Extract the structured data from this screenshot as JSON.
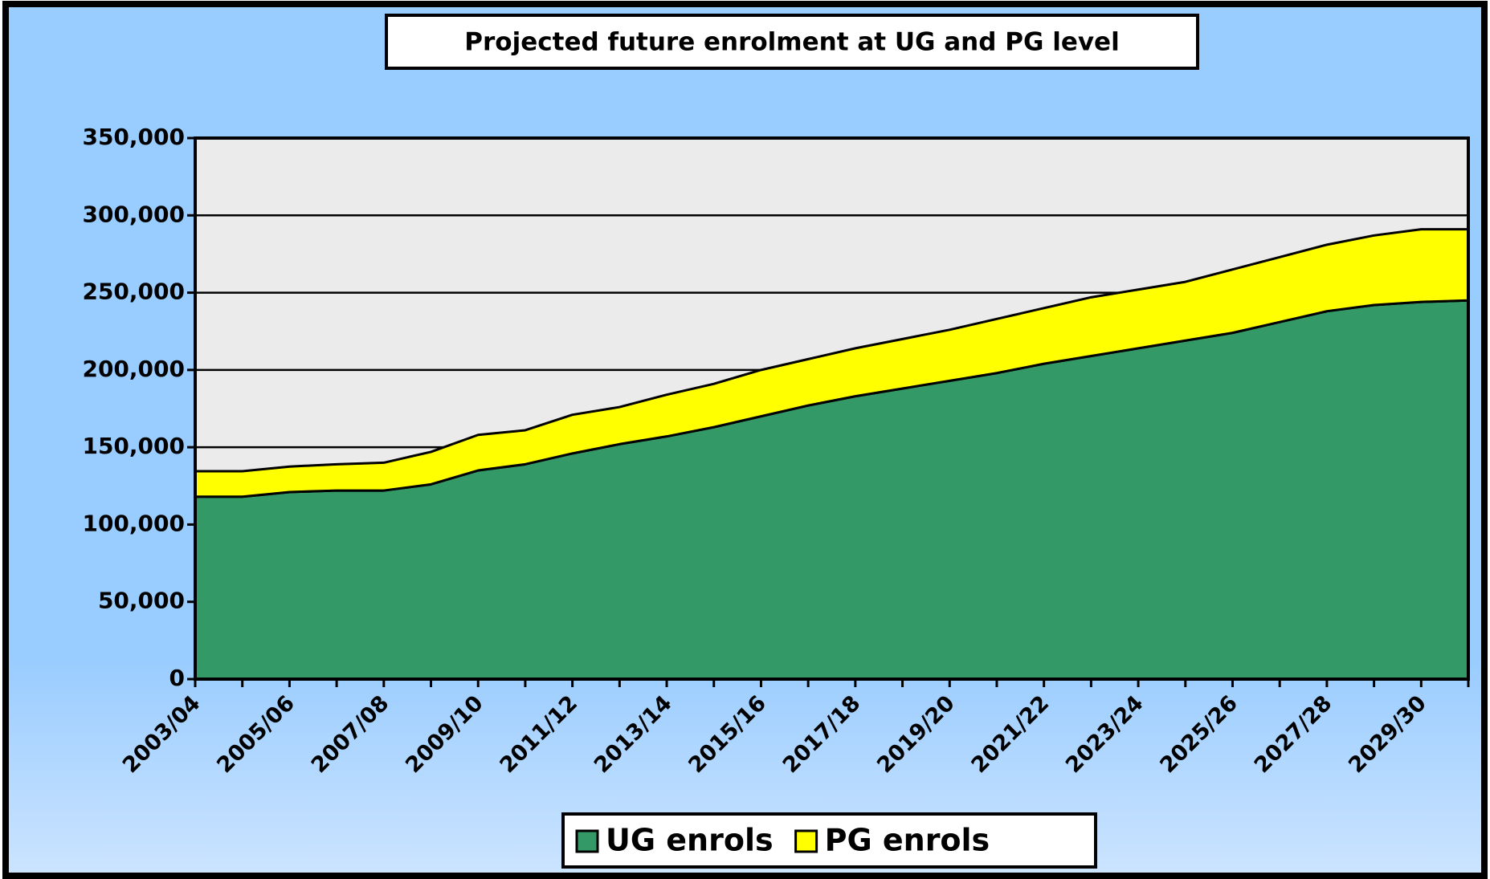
{
  "chart_data": {
    "type": "stacked-area",
    "title": "Projected future enrolment at UG and PG level",
    "categories": [
      "2003/04",
      null,
      "2005/06",
      null,
      "2007/08",
      null,
      "2009/10",
      null,
      "2011/12",
      null,
      "2013/14",
      null,
      "2015/16",
      null,
      "2017/18",
      null,
      "2019/20",
      null,
      "2021/22",
      null,
      "2023/24",
      null,
      "2025/26",
      null,
      "2027/28",
      null,
      "2029/30",
      null
    ],
    "series": [
      {
        "name": "UG enrols",
        "color": "#339966",
        "values": [
          118000,
          118000,
          121000,
          122000,
          122000,
          126000,
          135000,
          139000,
          146000,
          152000,
          157000,
          163000,
          170000,
          177000,
          183000,
          188000,
          193000,
          198000,
          204000,
          209000,
          214000,
          219000,
          224000,
          231000,
          238000,
          242000,
          244000,
          245000
        ]
      },
      {
        "name": "PG enrols",
        "color": "#ffff00",
        "values": [
          16500,
          16500,
          16500,
          17000,
          18000,
          21000,
          23000,
          22000,
          25000,
          24000,
          27000,
          28000,
          30000,
          30000,
          31000,
          32000,
          33000,
          35000,
          36000,
          38000,
          38000,
          38000,
          41000,
          42000,
          43000,
          45000,
          47000,
          46000
        ]
      }
    ],
    "ylim": [
      0,
      350000
    ],
    "yticks": [
      0,
      {
        "value": 50000,
        "label": "50,000"
      },
      {
        "value": 100000,
        "label": "100,000"
      },
      {
        "value": 150000,
        "label": "150,000"
      },
      {
        "value": 200000,
        "label": "200,000"
      },
      {
        "value": 250000,
        "label": "250,000"
      },
      {
        "value": 300000,
        "label": "300,000"
      },
      {
        "value": 350000,
        "label": "350,000"
      }
    ],
    "grid": true
  }
}
